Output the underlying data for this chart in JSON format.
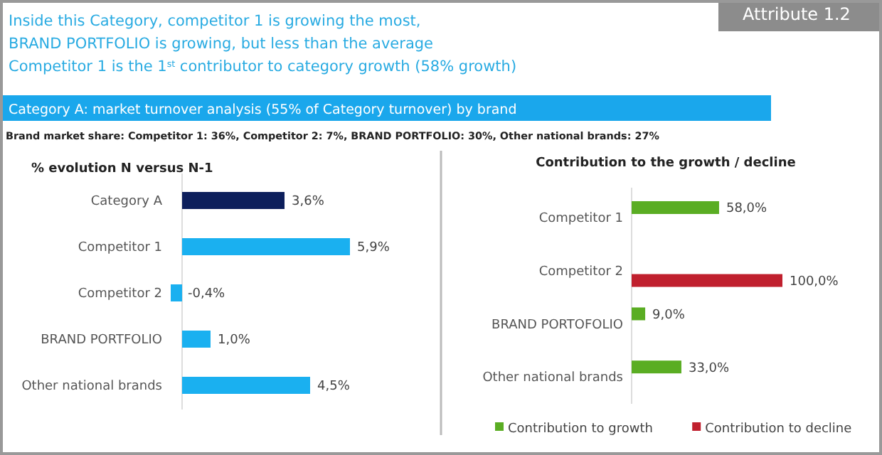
{
  "chart_data": [
    {
      "type": "bar",
      "orientation": "horizontal",
      "title": "% evolution N versus N-1",
      "annotations": [
        "Attribute 1.2",
        "Inside this Category, competitor 1 is growing the most,",
        "BRAND PORTFOLIO is growing, but less than the average",
        "Competitor 1 is the 1$^{st}$ contributor to category growth (58% growth)",
        "Category A: market turnover analysis (55% of Category  turnover) by brand",
        "Brand market share: Competitor 1: 36%, Competitor 2: 7%, BRAND PORTFOLIO: 30%, Other national brands: 27%"
      ],
      "categories": [
        "Category A",
        "Competitor 1",
        "Competitor 2",
        "BRAND PORTFOLIO",
        "Other national brands"
      ],
      "values": [
        3.6,
        5.9,
        -0.4,
        1.0,
        4.5
      ],
      "value_labels": [
        "3,6%",
        "5,9%",
        "-0,4%",
        "1,0%",
        "4,5%"
      ],
      "colors": [
        "#0d1f5c",
        "#1ab0f0",
        "#1ab0f0",
        "#1ab0f0",
        "#1ab0f0"
      ],
      "tick_labels": "y"
    },
    {
      "type": "bar",
      "orientation": "horizontal",
      "title": "Contribution to the growth / decline",
      "categories": [
        "Competitor 1",
        "Competitor 2",
        "BRAND PORTOFOLIO",
        "Other national brands"
      ],
      "series": [
        {
          "name": "Contribution to growth",
          "color": "#5aad23",
          "values": [
            58.0,
            null,
            9.0,
            33.0
          ],
          "value_labels": [
            "58,0%",
            null,
            "9,0%",
            "33,0%"
          ]
        },
        {
          "name": "Contribution to decline",
          "color": "#c0202e",
          "values": [
            null,
            100.0,
            null,
            null
          ],
          "value_labels": [
            null,
            "100,0%",
            null,
            null
          ]
        }
      ],
      "tick_labels": "y",
      "legend": "bottom"
    }
  ]
}
